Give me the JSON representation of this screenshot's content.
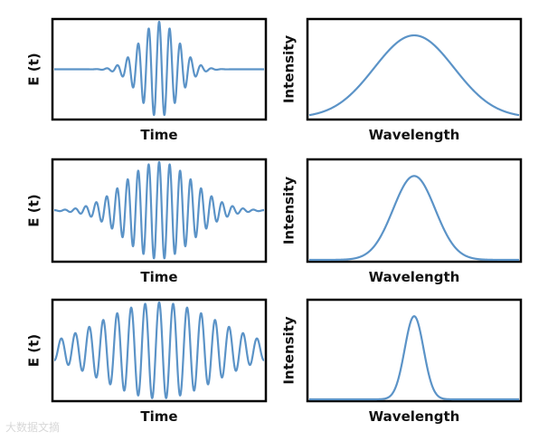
{
  "colors": {
    "curve": "#5b93c7",
    "frame": "#000000"
  },
  "watermark": "大数据文摘",
  "chart_data": [
    {
      "type": "line",
      "xlabel": "Time",
      "ylabel": "E (t)",
      "series": [
        {
          "kind": "wave_packet",
          "carrier_cycles": 20,
          "envelope_width": 0.09,
          "amplitude": 1.0
        }
      ]
    },
    {
      "type": "line",
      "xlabel": "Wavelength",
      "ylabel": "Intensity",
      "series": [
        {
          "kind": "gaussian",
          "center": 0.5,
          "width": 0.19,
          "peak": 0.85
        }
      ]
    },
    {
      "type": "line",
      "xlabel": "Time",
      "ylabel": "E (t)",
      "series": [
        {
          "kind": "wave_packet",
          "carrier_cycles": 20,
          "envelope_width": 0.16,
          "amplitude": 1.0
        }
      ]
    },
    {
      "type": "line",
      "xlabel": "Wavelength",
      "ylabel": "Intensity",
      "series": [
        {
          "kind": "gaussian",
          "center": 0.5,
          "width": 0.1,
          "peak": 0.85
        }
      ]
    },
    {
      "type": "line",
      "xlabel": "Time",
      "ylabel": "E (t)",
      "series": [
        {
          "kind": "wave_packet",
          "carrier_cycles": 15,
          "envelope_width": 0.28,
          "amplitude": 1.0
        }
      ]
    },
    {
      "type": "line",
      "xlabel": "Wavelength",
      "ylabel": "Intensity",
      "series": [
        {
          "kind": "gaussian",
          "center": 0.5,
          "width": 0.045,
          "peak": 0.85
        }
      ]
    }
  ]
}
